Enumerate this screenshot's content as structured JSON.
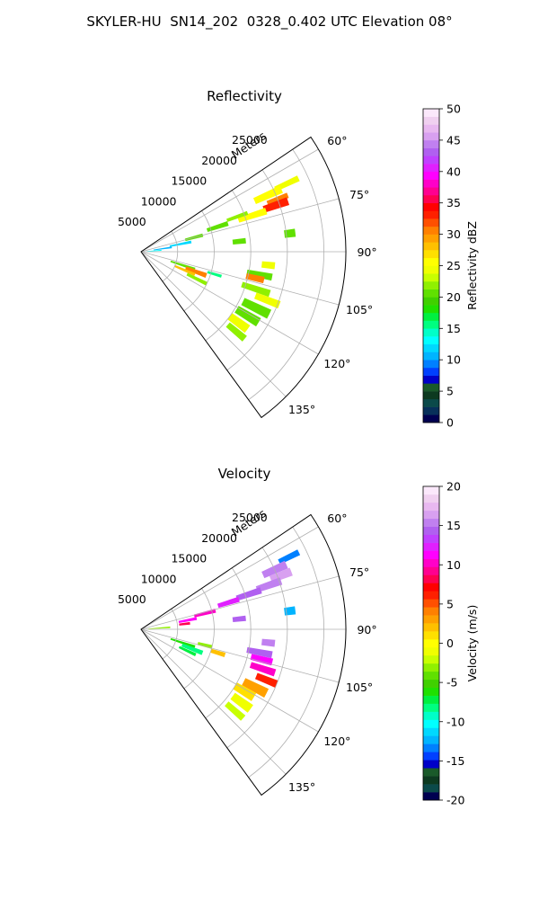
{
  "title": "SKYLER-HU  SN14_202  0328_0.402 UTC Elevation 08°",
  "chart_data": [
    {
      "type": "heatmap",
      "subtype": "polar-sector",
      "title": "Reflectivity",
      "radial_label": "Meters",
      "radial_ticks": [
        5000,
        10000,
        15000,
        20000,
        25000
      ],
      "radial_range": [
        0,
        28000
      ],
      "theta_ticks": [
        "60°",
        "75°",
        "90°",
        "105°",
        "120°",
        "135°"
      ],
      "theta_range_deg": [
        56,
        144
      ],
      "grid": true,
      "colorbar": {
        "label": "Reflectivity dBZ",
        "range": [
          0,
          50
        ],
        "ticks": [
          0,
          5,
          10,
          15,
          20,
          25,
          30,
          35,
          40,
          45,
          50
        ],
        "colors": [
          "#000050",
          "#07305a",
          "#0b4a4a",
          "#0d3a20",
          "#1a5a2a",
          "#0000c8",
          "#0040ff",
          "#0080ff",
          "#00b4ff",
          "#00d8ff",
          "#00ffff",
          "#00ffc8",
          "#00ff80",
          "#00f040",
          "#20e000",
          "#40d000",
          "#60e000",
          "#90f000",
          "#c8ff00",
          "#f0ff00",
          "#ffff00",
          "#ffe000",
          "#ffc000",
          "#ffa000",
          "#ff8000",
          "#ff5000",
          "#ff2000",
          "#ff0000",
          "#ff0050",
          "#ff0090",
          "#ff00c8",
          "#ff00ff",
          "#e020ff",
          "#c040ff",
          "#b060f0",
          "#c080f0",
          "#d8a0f0",
          "#e8b8f0",
          "#f0d0f0",
          "#fbe8fb"
        ],
        "position": "right"
      },
      "cells": [
        {
          "theta": 65,
          "r": 22000,
          "dr": 3500,
          "dth": 2,
          "value": 24
        },
        {
          "theta": 66,
          "r": 19000,
          "dr": 4000,
          "dth": 3,
          "value": 26
        },
        {
          "theta": 69,
          "r": 20000,
          "dr": 3000,
          "dth": 2,
          "value": 30
        },
        {
          "theta": 71,
          "r": 19500,
          "dr": 3500,
          "dth": 3,
          "value": 33
        },
        {
          "theta": 72,
          "r": 16000,
          "dr": 4000,
          "dth": 3,
          "value": 25
        },
        {
          "theta": 70,
          "r": 14000,
          "dr": 3000,
          "dth": 2,
          "value": 22
        },
        {
          "theta": 72,
          "r": 11000,
          "dr": 3000,
          "dth": 3,
          "value": 20
        },
        {
          "theta": 75,
          "r": 7500,
          "dr": 2500,
          "dth": 3,
          "value": 21
        },
        {
          "theta": 79,
          "r": 5500,
          "dr": 3000,
          "dth": 3,
          "value": 12
        },
        {
          "theta": 82,
          "r": 3000,
          "dr": 2500,
          "dth": 3,
          "value": 11
        },
        {
          "theta": 86,
          "r": 1800,
          "dr": 2000,
          "dth": 3,
          "value": 13
        },
        {
          "theta": 84,
          "r": 13500,
          "dr": 1800,
          "dth": 3,
          "value": 21
        },
        {
          "theta": 83,
          "r": 20500,
          "dr": 1500,
          "dth": 3,
          "value": 20
        },
        {
          "theta": 96,
          "r": 17500,
          "dr": 1800,
          "dth": 3,
          "value": 24
        },
        {
          "theta": 108,
          "r": 6000,
          "dr": 3500,
          "dth": 3,
          "value": 20
        },
        {
          "theta": 110,
          "r": 8000,
          "dr": 3000,
          "dth": 4,
          "value": 31
        },
        {
          "theta": 113,
          "r": 6500,
          "dr": 3000,
          "dth": 3,
          "value": 28
        },
        {
          "theta": 116,
          "r": 8500,
          "dr": 3000,
          "dth": 3,
          "value": 22
        },
        {
          "theta": 107,
          "r": 10500,
          "dr": 2000,
          "dth": 2,
          "value": 15
        },
        {
          "theta": 101,
          "r": 16500,
          "dr": 3500,
          "dth": 3,
          "value": 21
        },
        {
          "theta": 103,
          "r": 16000,
          "dr": 2500,
          "dth": 3,
          "value": 30
        },
        {
          "theta": 108,
          "r": 16500,
          "dr": 4000,
          "dth": 3,
          "value": 22
        },
        {
          "theta": 111,
          "r": 18500,
          "dr": 3500,
          "dth": 3,
          "value": 24
        },
        {
          "theta": 116,
          "r": 17500,
          "dr": 4000,
          "dth": 4,
          "value": 21
        },
        {
          "theta": 121,
          "r": 17000,
          "dr": 3500,
          "dth": 4,
          "value": 20
        },
        {
          "theta": 126,
          "r": 16500,
          "dr": 3000,
          "dth": 4,
          "value": 24
        },
        {
          "theta": 130,
          "r": 17000,
          "dr": 3000,
          "dth": 3,
          "value": 22
        }
      ]
    },
    {
      "type": "heatmap",
      "subtype": "polar-sector",
      "title": "Velocity",
      "radial_label": "Meters",
      "radial_ticks": [
        5000,
        10000,
        15000,
        20000,
        25000
      ],
      "radial_range": [
        0,
        28000
      ],
      "theta_ticks": [
        "60°",
        "75°",
        "90°",
        "105°",
        "120°",
        "135°"
      ],
      "theta_range_deg": [
        56,
        144
      ],
      "grid": true,
      "colorbar": {
        "label": "Velocity (m/s)",
        "range": [
          -20,
          20
        ],
        "ticks": [
          -20,
          -15,
          -10,
          -5,
          0,
          5,
          10,
          15,
          20
        ],
        "colors": [
          "#000050",
          "#0b4a4a",
          "#0d3a20",
          "#1a5a2a",
          "#0000c8",
          "#0040ff",
          "#0080ff",
          "#00b4ff",
          "#00d8ff",
          "#00ffff",
          "#00ffc8",
          "#00ff80",
          "#00f040",
          "#20e000",
          "#40d000",
          "#60e000",
          "#90f000",
          "#c8ff00",
          "#f0ff00",
          "#ffff00",
          "#ffe000",
          "#ffc000",
          "#ffa000",
          "#ff8000",
          "#ff5000",
          "#ff2000",
          "#ff0000",
          "#ff0050",
          "#ff0090",
          "#ff00c8",
          "#ff00ff",
          "#e020ff",
          "#c040ff",
          "#b060f0",
          "#c080f0",
          "#d8a0f0",
          "#e8b8f0",
          "#f0d0f0",
          "#fbe8fb"
        ],
        "position": "right"
      },
      "cells": [
        {
          "theta": 64,
          "r": 22500,
          "dr": 3000,
          "dth": 2,
          "value": -13
        },
        {
          "theta": 66,
          "r": 20000,
          "dr": 3500,
          "dth": 3,
          "value": 15
        },
        {
          "theta": 69,
          "r": 20500,
          "dr": 3000,
          "dth": 3,
          "value": 16
        },
        {
          "theta": 71,
          "r": 18500,
          "dr": 3500,
          "dth": 3,
          "value": 15
        },
        {
          "theta": 72,
          "r": 15500,
          "dr": 3500,
          "dth": 3,
          "value": 14
        },
        {
          "theta": 73,
          "r": 12500,
          "dr": 3000,
          "dth": 3,
          "value": 12
        },
        {
          "theta": 76,
          "r": 9000,
          "dr": 3000,
          "dth": 3,
          "value": 10
        },
        {
          "theta": 79,
          "r": 6500,
          "dr": 2500,
          "dth": 3,
          "value": 11
        },
        {
          "theta": 83,
          "r": 6000,
          "dr": 1500,
          "dth": 3,
          "value": 8
        },
        {
          "theta": 86,
          "r": 2500,
          "dr": 3000,
          "dth": 3,
          "value": -3
        },
        {
          "theta": 84,
          "r": 13500,
          "dr": 1800,
          "dth": 3,
          "value": 14
        },
        {
          "theta": 83,
          "r": 20500,
          "dr": 1500,
          "dth": 3,
          "value": -12
        },
        {
          "theta": 96,
          "r": 17500,
          "dr": 1800,
          "dth": 3,
          "value": 15
        },
        {
          "theta": 108,
          "r": 6000,
          "dr": 3500,
          "dth": 3,
          "value": -6
        },
        {
          "theta": 111,
          "r": 7500,
          "dr": 3000,
          "dth": 4,
          "value": -8
        },
        {
          "theta": 115,
          "r": 7000,
          "dr": 2500,
          "dth": 3,
          "value": -7
        },
        {
          "theta": 104,
          "r": 9000,
          "dr": 2000,
          "dth": 3,
          "value": -3
        },
        {
          "theta": 107,
          "r": 11000,
          "dr": 2000,
          "dth": 3,
          "value": 2
        },
        {
          "theta": 101,
          "r": 16500,
          "dr": 3500,
          "dth": 3,
          "value": 14
        },
        {
          "theta": 104,
          "r": 17000,
          "dr": 3000,
          "dth": 3,
          "value": 11
        },
        {
          "theta": 108,
          "r": 17500,
          "dr": 3500,
          "dth": 3,
          "value": 10
        },
        {
          "theta": 112,
          "r": 18500,
          "dr": 3000,
          "dth": 3,
          "value": 6
        },
        {
          "theta": 117,
          "r": 17500,
          "dr": 3500,
          "dth": 4,
          "value": 3
        },
        {
          "theta": 121,
          "r": 16500,
          "dr": 3000,
          "dth": 4,
          "value": 1
        },
        {
          "theta": 126,
          "r": 17000,
          "dr": 3000,
          "dth": 4,
          "value": -1
        },
        {
          "theta": 131,
          "r": 17000,
          "dr": 3000,
          "dth": 3,
          "value": -2
        }
      ]
    }
  ]
}
